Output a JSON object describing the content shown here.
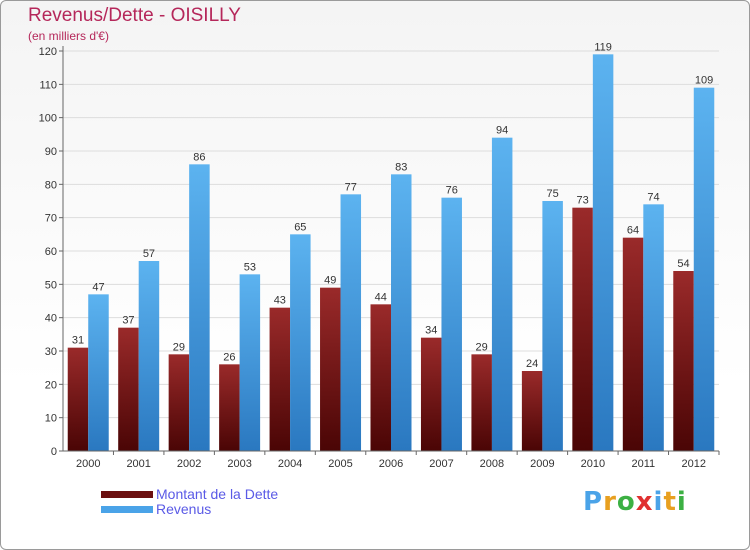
{
  "header": {
    "title": "Revenus/Dette - OISILLY",
    "subtitle": "(en milliers d'€)"
  },
  "chart_data": {
    "type": "bar",
    "categories": [
      "2000",
      "2001",
      "2002",
      "2003",
      "2004",
      "2005",
      "2006",
      "2007",
      "2008",
      "2009",
      "2010",
      "2011",
      "2012"
    ],
    "series": [
      {
        "name": "Montant de la Dette",
        "color": "#8b1a1a",
        "values": [
          31,
          37,
          29,
          26,
          43,
          49,
          44,
          34,
          29,
          24,
          73,
          64,
          54
        ]
      },
      {
        "name": "Revenus",
        "color": "#4aa3e8",
        "values": [
          47,
          57,
          86,
          53,
          65,
          77,
          83,
          76,
          94,
          75,
          119,
          74,
          109
        ]
      }
    ],
    "ylim": [
      0,
      120
    ],
    "yticks": [
      0,
      10,
      20,
      30,
      40,
      50,
      60,
      70,
      80,
      90,
      100,
      110,
      120
    ],
    "grid": true,
    "legend": "bottom-left"
  },
  "legend": {
    "items": [
      {
        "label": "Montant de la Dette",
        "color": "#6b0f0f"
      },
      {
        "label": "Revenus",
        "color": "#4aa3e8"
      }
    ]
  },
  "logo": {
    "text": "Proxiti",
    "letters": [
      "P",
      "r",
      "o",
      "x",
      "i",
      "t",
      "i"
    ],
    "colors": [
      "#4aa3e8",
      "#e8a020",
      "#3cb043",
      "#e03030",
      "#4aa3e8",
      "#e8a020",
      "#3cb043"
    ]
  }
}
